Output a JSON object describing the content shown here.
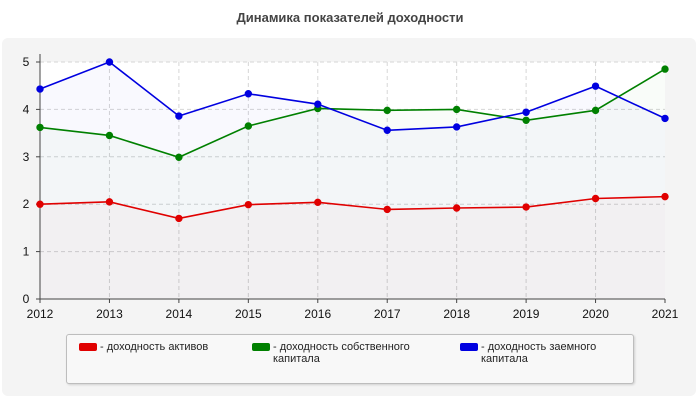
{
  "chart_data": {
    "type": "line",
    "title": "Динамика показателей доходности",
    "xlabel": "",
    "ylabel": "",
    "x": [
      "2012",
      "2013",
      "2014",
      "2015",
      "2016",
      "2017",
      "2018",
      "2019",
      "2020",
      "2021"
    ],
    "ylim": [
      0,
      5
    ],
    "yticks": [
      "0",
      "1",
      "2",
      "3",
      "4",
      "5"
    ],
    "grid": true,
    "legend_position": "bottom",
    "series": [
      {
        "name": "- доходность активов",
        "color": "#e00000",
        "values": [
          2.0,
          2.05,
          1.7,
          1.99,
          2.04,
          1.89,
          1.92,
          1.94,
          2.12,
          2.16
        ]
      },
      {
        "name": "- доходность собственного капитала",
        "color": "#008000",
        "values": [
          3.62,
          3.45,
          2.99,
          3.65,
          4.02,
          3.98,
          4.0,
          3.77,
          3.98,
          4.85
        ]
      },
      {
        "name": "- доходность заемного капитала",
        "color": "#0000e0",
        "values": [
          4.43,
          5.0,
          3.86,
          4.33,
          4.11,
          3.56,
          3.63,
          3.94,
          4.49,
          3.81
        ]
      }
    ]
  }
}
